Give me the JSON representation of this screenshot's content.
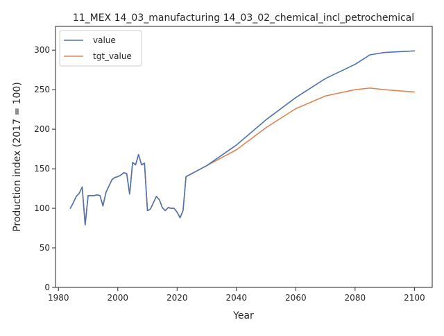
{
  "chart_data": {
    "type": "line",
    "title": "11_MEX 14_03_manufacturing 14_03_02_chemical_incl_petrochemical",
    "xlabel": "Year",
    "ylabel": "Production index (2017 = 100)",
    "xlim": [
      1979,
      2106
    ],
    "ylim": [
      0,
      330
    ],
    "xticks": [
      1980,
      2000,
      2020,
      2040,
      2060,
      2080,
      2100
    ],
    "yticks": [
      0,
      50,
      100,
      150,
      200,
      250,
      300
    ],
    "grid": false,
    "legend_position": "top-left",
    "x": [
      1984,
      1985,
      1986,
      1987,
      1988,
      1989,
      1990,
      1991,
      1992,
      1993,
      1994,
      1995,
      1996,
      1997,
      1998,
      1999,
      2000,
      2001,
      2002,
      2003,
      2004,
      2005,
      2006,
      2007,
      2008,
      2009,
      2010,
      2011,
      2012,
      2013,
      2014,
      2015,
      2016,
      2017,
      2018,
      2019,
      2020,
      2021,
      2022,
      2023,
      2030,
      2040,
      2050,
      2060,
      2070,
      2080,
      2085,
      2090,
      2100
    ],
    "series": [
      {
        "name": "value",
        "color": "#4c72b0",
        "values": [
          100,
          107,
          115,
          119,
          127,
          79,
          116,
          116,
          116,
          117,
          116,
          103,
          120,
          128,
          136,
          139,
          140,
          142,
          145,
          144,
          118,
          158,
          155,
          168,
          155,
          157,
          97,
          99,
          107,
          115,
          111,
          101,
          97,
          101,
          100,
          100,
          95,
          88,
          97,
          140,
          154,
          180,
          212,
          240,
          264,
          282,
          294,
          297,
          299
        ]
      },
      {
        "name": "tgt_value",
        "color": "#dd8452",
        "values": [
          100,
          107,
          115,
          119,
          127,
          79,
          116,
          116,
          116,
          117,
          116,
          103,
          120,
          128,
          136,
          139,
          140,
          142,
          145,
          144,
          118,
          158,
          155,
          168,
          155,
          157,
          97,
          99,
          107,
          115,
          111,
          101,
          97,
          101,
          100,
          100,
          95,
          88,
          97,
          140,
          154,
          174,
          202,
          226,
          242,
          250,
          252,
          250,
          247
        ]
      }
    ]
  }
}
